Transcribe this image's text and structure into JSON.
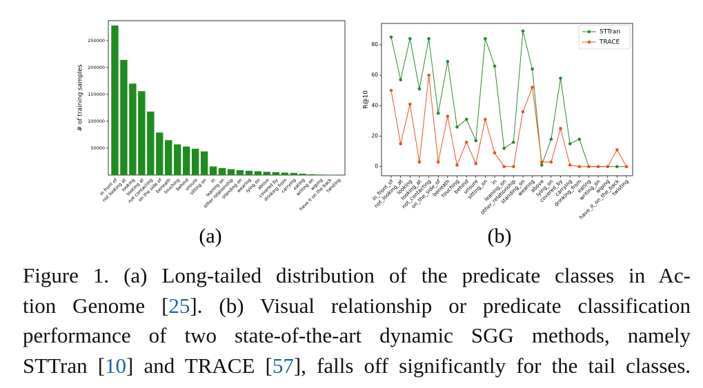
{
  "chart_data": [
    {
      "type": "bar",
      "ylabel": "# of training samples",
      "categories": [
        "in front of",
        "not looking at",
        "looking",
        "looking at",
        "not contacting",
        "on the side of",
        "beneath",
        "touching",
        "behind",
        "unsure",
        "sitting on",
        "in",
        "leaning on",
        "other relationship",
        "standing on",
        "wearing",
        "lying on",
        "above",
        "covered by",
        "drinking from",
        "carrying",
        "eating",
        "writing on",
        "wiping",
        "have it on the back",
        "twisting"
      ],
      "values": [
        278000,
        214000,
        170000,
        156000,
        118000,
        79000,
        65000,
        57000,
        53000,
        49000,
        44000,
        16000,
        13000,
        11000,
        9000,
        8000,
        7000,
        6000,
        5500,
        4500,
        4000,
        2500,
        1500,
        1000,
        500,
        300
      ],
      "color": "#1f8c1f",
      "ylim": [
        0,
        287000
      ],
      "yticks": [
        50000,
        100000,
        150000,
        200000,
        250000
      ]
    },
    {
      "type": "line",
      "ylabel": "R@10",
      "categories": [
        "in_front_of",
        "not_looking_at",
        "looking",
        "looking_at",
        "not_contacting",
        "on_the_side_of",
        "beneath",
        "touching",
        "behind",
        "unsure",
        "sitting_on",
        "in",
        "leaning_on",
        "other_relationship",
        "standing_on",
        "wearing",
        "above",
        "lying_on",
        "covered_by",
        "carrying",
        "drinking_from",
        "eating",
        "writing_on",
        "wiping",
        "have_it_on_the_back",
        "twisting"
      ],
      "series": [
        {
          "name": "STTran",
          "color": "#2a8a2a",
          "values": [
            85,
            57,
            84,
            51,
            84,
            35,
            69,
            26,
            31,
            17,
            84,
            66,
            12,
            16,
            89,
            64,
            1,
            18,
            58,
            15,
            18,
            0,
            0,
            0,
            0,
            0
          ]
        },
        {
          "name": "TRACE",
          "color": "#f0501e",
          "values": [
            50,
            15,
            41,
            3,
            60,
            3,
            33,
            1,
            16,
            2,
            31,
            9,
            0,
            0,
            36,
            52,
            3,
            3,
            25,
            1,
            0,
            0,
            0,
            0,
            11,
            0
          ]
        }
      ],
      "ylim": [
        -6,
        94
      ],
      "yticks": [
        0,
        20,
        40,
        60,
        80
      ],
      "legend": "upper right"
    }
  ],
  "subcaptions": [
    "(a)",
    "(b)"
  ],
  "caption": {
    "lines": [
      [
        {
          "text": "Figure 1. (a) Long-tailed distribution of the predicate classes in Ac-"
        }
      ],
      [
        {
          "text": "tion Genome ["
        },
        {
          "text": "25",
          "cite": true
        },
        {
          "text": "]. (b) Visual relationship or predicate classification"
        }
      ],
      [
        {
          "text": "performance of two state-of-the-art dynamic SGG methods, namely"
        }
      ],
      [
        {
          "text": "STTran ["
        },
        {
          "text": "10",
          "cite": true
        },
        {
          "text": "] and TRACE ["
        },
        {
          "text": "57",
          "cite": true
        },
        {
          "text": "], falls off significantly for the tail classes."
        }
      ]
    ]
  }
}
